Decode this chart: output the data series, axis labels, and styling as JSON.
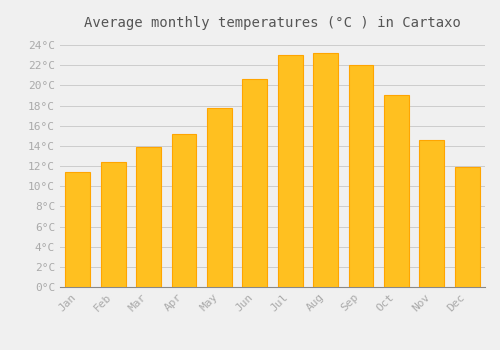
{
  "title": "Average monthly temperatures (°C ) in Cartaxo",
  "months": [
    "Jan",
    "Feb",
    "Mar",
    "Apr",
    "May",
    "Jun",
    "Jul",
    "Aug",
    "Sep",
    "Oct",
    "Nov",
    "Dec"
  ],
  "values": [
    11.4,
    12.4,
    13.9,
    15.2,
    17.8,
    20.6,
    23.0,
    23.2,
    22.0,
    19.0,
    14.6,
    11.9
  ],
  "bar_color": "#FFC020",
  "bar_edge_color": "#FFA500",
  "background_color": "#F0F0F0",
  "grid_color": "#CCCCCC",
  "ylim": [
    0,
    25
  ],
  "yticks": [
    0,
    2,
    4,
    6,
    8,
    10,
    12,
    14,
    16,
    18,
    20,
    22,
    24
  ],
  "title_fontsize": 10,
  "tick_fontsize": 8,
  "tick_font_color": "#AAAAAA",
  "title_color": "#555555"
}
